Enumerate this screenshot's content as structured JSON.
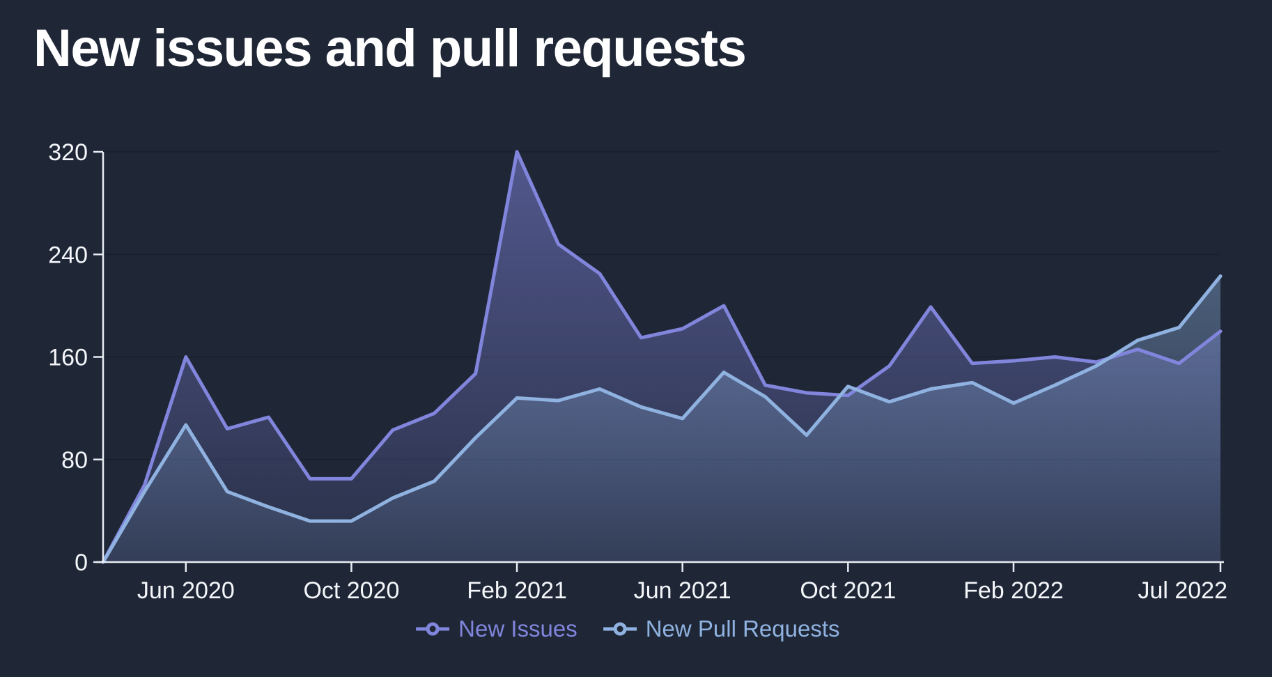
{
  "page": {
    "title": "New issues and pull requests",
    "background_color": "#1F2737"
  },
  "legend": {
    "items": [
      {
        "label": "New Issues",
        "marker": "line-circle-icon",
        "color": "#8185DC"
      },
      {
        "label": "New Pull Requests",
        "marker": "line-circle-icon",
        "color": "#8FB2E0"
      }
    ]
  },
  "chart_data": {
    "type": "area",
    "title": "New issues and pull requests",
    "xlabel": "",
    "ylabel": "",
    "grid": "horizontal",
    "legend_position": "bottom-center",
    "ylim": [
      0,
      320
    ],
    "y_ticks": [
      0,
      80,
      160,
      240,
      320
    ],
    "x": [
      "Apr 2020",
      "May 2020",
      "Jun 2020",
      "Jul 2020",
      "Aug 2020",
      "Sep 2020",
      "Oct 2020",
      "Nov 2020",
      "Dec 2020",
      "Jan 2021",
      "Feb 2021",
      "Mar 2021",
      "Apr 2021",
      "May 2021",
      "Jun 2021",
      "Jul 2021",
      "Aug 2021",
      "Sep 2021",
      "Oct 2021",
      "Nov 2021",
      "Dec 2021",
      "Jan 2022",
      "Feb 2022",
      "Mar 2022",
      "Apr 2022",
      "May 2022",
      "Jun 2022",
      "Jul 2022"
    ],
    "x_tick_labels": [
      {
        "label": "Jun 2020",
        "month_index": 2,
        "anchor": "middle"
      },
      {
        "label": "Oct 2020",
        "month_index": 6,
        "anchor": "middle"
      },
      {
        "label": "Feb 2021",
        "month_index": 10,
        "anchor": "middle"
      },
      {
        "label": "Jun 2021",
        "month_index": 14,
        "anchor": "middle"
      },
      {
        "label": "Oct 2021",
        "month_index": 18,
        "anchor": "middle"
      },
      {
        "label": "Feb 2022",
        "month_index": 22,
        "anchor": "middle"
      },
      {
        "label": "Jul 2022",
        "month_index": 27,
        "anchor": "end"
      }
    ],
    "series": [
      {
        "name": "New Issues",
        "color": "#8185DC",
        "values": [
          0,
          60,
          160,
          104,
          113,
          65,
          65,
          103,
          116,
          147,
          320,
          248,
          225,
          175,
          182,
          200,
          138,
          132,
          130,
          153,
          199,
          155,
          157,
          160,
          156,
          166,
          155,
          180
        ]
      },
      {
        "name": "New Pull Requests",
        "color": "#8FB2E0",
        "values": [
          0,
          55,
          107,
          55,
          43,
          32,
          32,
          50,
          63,
          97,
          128,
          126,
          135,
          121,
          112,
          148,
          129,
          99,
          137,
          125,
          135,
          140,
          124,
          138,
          153,
          173,
          183,
          223
        ]
      }
    ],
    "axis_color": "#E8ECF2",
    "tick_label_color": "#F4F6FA",
    "gridline_color": "#1A202E"
  }
}
